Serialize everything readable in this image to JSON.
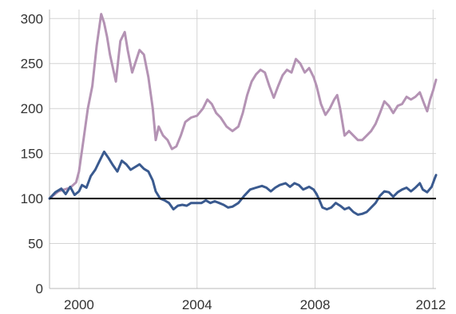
{
  "chart_data": {
    "type": "line",
    "title": "",
    "xlabel": "",
    "ylabel": "",
    "xlim": [
      1999.0,
      2012.1
    ],
    "ylim": [
      0,
      310
    ],
    "x_ticks": [
      2000,
      2004,
      2008,
      2012
    ],
    "x_tick_labels": [
      "2000",
      "2004",
      "2008",
      "2012"
    ],
    "y_ticks": [
      0,
      50,
      100,
      150,
      200,
      250,
      300
    ],
    "y_tick_labels": [
      "0",
      "50",
      "100",
      "150",
      "200",
      "250",
      "300"
    ],
    "grid": true,
    "reference_line": {
      "y": 100,
      "color": "#111111"
    },
    "series": [
      {
        "color": "#b493b4",
        "points": [
          [
            1999.0,
            100
          ],
          [
            1999.3,
            108
          ],
          [
            1999.5,
            110
          ],
          [
            1999.7,
            112
          ],
          [
            1999.9,
            118
          ],
          [
            2000.0,
            130
          ],
          [
            2000.15,
            165
          ],
          [
            2000.3,
            200
          ],
          [
            2000.45,
            225
          ],
          [
            2000.6,
            270
          ],
          [
            2000.75,
            305
          ],
          [
            2000.85,
            295
          ],
          [
            2000.95,
            280
          ],
          [
            2001.05,
            260
          ],
          [
            2001.15,
            245
          ],
          [
            2001.25,
            230
          ],
          [
            2001.4,
            275
          ],
          [
            2001.55,
            285
          ],
          [
            2001.65,
            265
          ],
          [
            2001.8,
            240
          ],
          [
            2001.95,
            255
          ],
          [
            2002.05,
            265
          ],
          [
            2002.2,
            260
          ],
          [
            2002.35,
            235
          ],
          [
            2002.5,
            200
          ],
          [
            2002.6,
            165
          ],
          [
            2002.7,
            180
          ],
          [
            2002.85,
            170
          ],
          [
            2003.0,
            165
          ],
          [
            2003.15,
            155
          ],
          [
            2003.3,
            158
          ],
          [
            2003.45,
            170
          ],
          [
            2003.6,
            185
          ],
          [
            2003.8,
            190
          ],
          [
            2004.0,
            192
          ],
          [
            2004.2,
            200
          ],
          [
            2004.35,
            210
          ],
          [
            2004.5,
            205
          ],
          [
            2004.65,
            195
          ],
          [
            2004.8,
            190
          ],
          [
            2005.0,
            180
          ],
          [
            2005.2,
            175
          ],
          [
            2005.4,
            180
          ],
          [
            2005.55,
            195
          ],
          [
            2005.7,
            215
          ],
          [
            2005.85,
            230
          ],
          [
            2006.0,
            238
          ],
          [
            2006.15,
            243
          ],
          [
            2006.3,
            240
          ],
          [
            2006.45,
            225
          ],
          [
            2006.6,
            212
          ],
          [
            2006.75,
            225
          ],
          [
            2006.9,
            237
          ],
          [
            2007.05,
            243
          ],
          [
            2007.2,
            240
          ],
          [
            2007.35,
            255
          ],
          [
            2007.5,
            250
          ],
          [
            2007.65,
            240
          ],
          [
            2007.8,
            245
          ],
          [
            2007.95,
            235
          ],
          [
            2008.05,
            225
          ],
          [
            2008.2,
            205
          ],
          [
            2008.35,
            193
          ],
          [
            2008.5,
            200
          ],
          [
            2008.65,
            210
          ],
          [
            2008.75,
            215
          ],
          [
            2008.85,
            200
          ],
          [
            2009.0,
            170
          ],
          [
            2009.15,
            175
          ],
          [
            2009.3,
            170
          ],
          [
            2009.45,
            165
          ],
          [
            2009.6,
            165
          ],
          [
            2009.75,
            170
          ],
          [
            2009.9,
            175
          ],
          [
            2010.05,
            183
          ],
          [
            2010.2,
            195
          ],
          [
            2010.35,
            208
          ],
          [
            2010.5,
            203
          ],
          [
            2010.65,
            195
          ],
          [
            2010.8,
            203
          ],
          [
            2010.95,
            205
          ],
          [
            2011.1,
            213
          ],
          [
            2011.25,
            210
          ],
          [
            2011.4,
            213
          ],
          [
            2011.55,
            218
          ],
          [
            2011.7,
            205
          ],
          [
            2011.8,
            197
          ],
          [
            2011.9,
            210
          ],
          [
            2012.0,
            220
          ],
          [
            2012.1,
            232
          ]
        ]
      },
      {
        "color": "#3a5a8f",
        "points": [
          [
            1999.0,
            100
          ],
          [
            1999.2,
            107
          ],
          [
            1999.4,
            111
          ],
          [
            1999.55,
            105
          ],
          [
            1999.7,
            113
          ],
          [
            1999.85,
            104
          ],
          [
            2000.0,
            108
          ],
          [
            2000.1,
            115
          ],
          [
            2000.25,
            112
          ],
          [
            2000.4,
            125
          ],
          [
            2000.55,
            132
          ],
          [
            2000.7,
            142
          ],
          [
            2000.85,
            152
          ],
          [
            2001.0,
            145
          ],
          [
            2001.15,
            137
          ],
          [
            2001.3,
            130
          ],
          [
            2001.45,
            142
          ],
          [
            2001.6,
            138
          ],
          [
            2001.75,
            132
          ],
          [
            2001.9,
            135
          ],
          [
            2002.05,
            138
          ],
          [
            2002.2,
            133
          ],
          [
            2002.35,
            130
          ],
          [
            2002.5,
            120
          ],
          [
            2002.6,
            108
          ],
          [
            2002.75,
            100
          ],
          [
            2002.9,
            98
          ],
          [
            2003.05,
            95
          ],
          [
            2003.2,
            88
          ],
          [
            2003.35,
            92
          ],
          [
            2003.5,
            93
          ],
          [
            2003.65,
            92
          ],
          [
            2003.8,
            95
          ],
          [
            2004.0,
            95
          ],
          [
            2004.15,
            95
          ],
          [
            2004.3,
            98
          ],
          [
            2004.45,
            95
          ],
          [
            2004.6,
            97
          ],
          [
            2004.75,
            95
          ],
          [
            2004.9,
            93
          ],
          [
            2005.05,
            90
          ],
          [
            2005.2,
            91
          ],
          [
            2005.4,
            95
          ],
          [
            2005.6,
            103
          ],
          [
            2005.8,
            110
          ],
          [
            2006.0,
            112
          ],
          [
            2006.2,
            114
          ],
          [
            2006.35,
            112
          ],
          [
            2006.5,
            108
          ],
          [
            2006.65,
            112
          ],
          [
            2006.8,
            115
          ],
          [
            2007.0,
            117
          ],
          [
            2007.15,
            113
          ],
          [
            2007.3,
            117
          ],
          [
            2007.45,
            115
          ],
          [
            2007.6,
            110
          ],
          [
            2007.8,
            113
          ],
          [
            2007.95,
            110
          ],
          [
            2008.05,
            105
          ],
          [
            2008.15,
            98
          ],
          [
            2008.25,
            90
          ],
          [
            2008.4,
            88
          ],
          [
            2008.55,
            90
          ],
          [
            2008.7,
            95
          ],
          [
            2008.85,
            92
          ],
          [
            2009.0,
            88
          ],
          [
            2009.15,
            90
          ],
          [
            2009.3,
            85
          ],
          [
            2009.45,
            82
          ],
          [
            2009.6,
            83
          ],
          [
            2009.75,
            85
          ],
          [
            2009.9,
            90
          ],
          [
            2010.05,
            95
          ],
          [
            2010.2,
            103
          ],
          [
            2010.35,
            108
          ],
          [
            2010.5,
            107
          ],
          [
            2010.65,
            102
          ],
          [
            2010.8,
            107
          ],
          [
            2010.95,
            110
          ],
          [
            2011.1,
            112
          ],
          [
            2011.25,
            108
          ],
          [
            2011.4,
            112
          ],
          [
            2011.55,
            117
          ],
          [
            2011.65,
            110
          ],
          [
            2011.8,
            107
          ],
          [
            2011.95,
            113
          ],
          [
            2012.05,
            122
          ],
          [
            2012.1,
            126
          ]
        ]
      }
    ]
  }
}
